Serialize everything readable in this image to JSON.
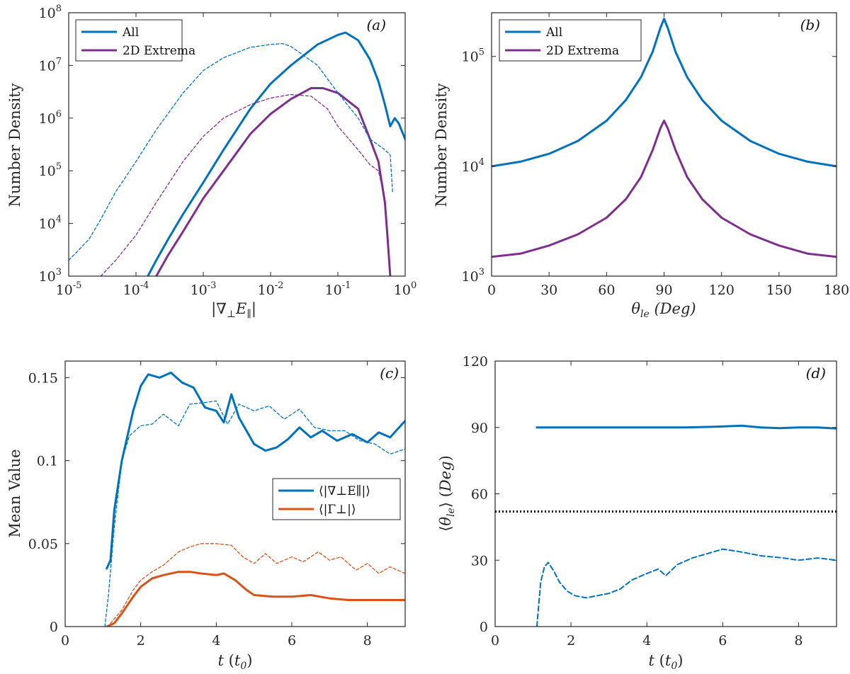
{
  "colors": {
    "blue": "#0072bd",
    "purple": "#7e2f8e",
    "orange": "#d95319",
    "black": "#000000"
  },
  "chart_data": [
    {
      "panel": "(a)",
      "type": "line",
      "xscale": "log",
      "yscale": "log",
      "xlim": [
        1e-05,
        1
      ],
      "ylim": [
        1000,
        100000000
      ],
      "xticks": [
        "10-5",
        "10-4",
        "10-3",
        "10-2",
        "10-1",
        "100"
      ],
      "yticks": [
        "103",
        "104",
        "105",
        "106",
        "107",
        "108"
      ],
      "xlabel": "|∇⊥E∥|",
      "ylabel": "Number Density",
      "legend": [
        "All",
        "2D Extrema"
      ],
      "legend_position": "top-left",
      "series": [
        {
          "name": "All (solid)",
          "color": "blue",
          "style": "solid",
          "x": [
            0.00015,
            0.0002,
            0.0003,
            0.0005,
            0.001,
            0.002,
            0.005,
            0.01,
            0.02,
            0.05,
            0.1,
            0.13,
            0.2,
            0.3,
            0.4,
            0.5,
            0.6,
            0.7,
            0.8,
            1.0
          ],
          "y": [
            1000,
            2000,
            5000,
            15000,
            60000,
            250000,
            1500000,
            4500000,
            10000000,
            25000000,
            38000000,
            42000000,
            30000000,
            13000000,
            5000000,
            1800000,
            700000,
            1000000,
            800000,
            400000
          ]
        },
        {
          "name": "2D Extrema (solid)",
          "color": "purple",
          "style": "solid",
          "x": [
            0.0002,
            0.0003,
            0.0005,
            0.001,
            0.002,
            0.005,
            0.01,
            0.02,
            0.04,
            0.06,
            0.1,
            0.2,
            0.3,
            0.4,
            0.5,
            0.55,
            0.6
          ],
          "y": [
            1000,
            2500,
            7000,
            30000,
            100000,
            500000,
            1200000,
            2300000,
            3700000,
            3700000,
            3000000,
            1500000,
            400000,
            150000,
            25000,
            5000,
            1000
          ]
        },
        {
          "name": "All (dashed)",
          "color": "blue",
          "style": "dashed",
          "x": [
            1e-05,
            2e-05,
            3e-05,
            5e-05,
            0.0001,
            0.0002,
            0.0005,
            0.001,
            0.002,
            0.005,
            0.01,
            0.015,
            0.02,
            0.05,
            0.1,
            0.2,
            0.3,
            0.5,
            0.6,
            0.65
          ],
          "y": [
            2000,
            5000,
            12000,
            40000,
            150000,
            600000,
            3000000,
            8000000,
            14000000,
            22000000,
            25000000,
            26000000,
            23000000,
            10000000,
            3000000,
            1000000,
            400000,
            250000,
            200000,
            40000
          ]
        },
        {
          "name": "2D Extrema (dashed)",
          "color": "purple",
          "style": "dashed",
          "x": [
            3e-05,
            5e-05,
            0.0001,
            0.0002,
            0.0005,
            0.001,
            0.002,
            0.005,
            0.01,
            0.02,
            0.04,
            0.07,
            0.1,
            0.2,
            0.3,
            0.4,
            0.5
          ],
          "y": [
            1000,
            2000,
            6000,
            25000,
            150000,
            450000,
            1000000,
            1800000,
            2400000,
            2800000,
            2600000,
            1500000,
            700000,
            250000,
            130000,
            100000,
            30000
          ]
        }
      ]
    },
    {
      "panel": "(b)",
      "type": "line",
      "yscale": "log",
      "xlim": [
        0,
        180
      ],
      "ylim": [
        1000,
        250000
      ],
      "xticks": [
        "0",
        "30",
        "60",
        "90",
        "120",
        "150",
        "180"
      ],
      "yticks": [
        "103",
        "104",
        "105"
      ],
      "xlabel": "θle (Deg)",
      "ylabel": "Number Density",
      "legend": [
        "All",
        "2D Extrema"
      ],
      "legend_position": "top-left",
      "series": [
        {
          "name": "All",
          "color": "blue",
          "style": "solid",
          "x": [
            0,
            15,
            30,
            45,
            60,
            70,
            78,
            84,
            88,
            90,
            92,
            96,
            102,
            110,
            120,
            135,
            150,
            165,
            180
          ],
          "y": [
            10000,
            11000,
            13000,
            17000,
            26000,
            40000,
            65000,
            110000,
            180000,
            220000,
            180000,
            110000,
            65000,
            40000,
            26000,
            17000,
            13000,
            11000,
            10000
          ]
        },
        {
          "name": "2D Extrema",
          "color": "purple",
          "style": "solid",
          "x": [
            0,
            15,
            30,
            45,
            60,
            70,
            78,
            84,
            88,
            90,
            92,
            96,
            102,
            110,
            120,
            135,
            150,
            165,
            180
          ],
          "y": [
            1500,
            1600,
            1900,
            2400,
            3400,
            5000,
            8000,
            14000,
            22000,
            26000,
            22000,
            14000,
            8000,
            5000,
            3400,
            2400,
            1900,
            1600,
            1500
          ]
        }
      ]
    },
    {
      "panel": "(c)",
      "type": "line",
      "xlim": [
        0,
        9
      ],
      "ylim": [
        0,
        0.16
      ],
      "xticks": [
        "0",
        "2",
        "4",
        "6",
        "8"
      ],
      "yticks": [
        "0",
        "0.05",
        "0.1",
        "0.15"
      ],
      "xlabel": "t (t0)",
      "ylabel": "Mean Value",
      "legend": [
        "⟨|∇⊥E∥|⟩",
        "⟨|Γ⊥|⟩"
      ],
      "legend_position": "center-right",
      "series": [
        {
          "name": "⟨|∇⊥E∥|⟩ solid",
          "color": "blue",
          "style": "solid",
          "x": [
            1.1,
            1.2,
            1.3,
            1.5,
            1.8,
            2.0,
            2.2,
            2.5,
            2.8,
            3.1,
            3.4,
            3.7,
            4.0,
            4.2,
            4.4,
            4.6,
            5.0,
            5.3,
            5.6,
            5.9,
            6.2,
            6.5,
            6.8,
            7.2,
            7.6,
            8.0,
            8.3,
            8.6,
            9.0
          ],
          "y": [
            0.035,
            0.04,
            0.07,
            0.1,
            0.13,
            0.145,
            0.152,
            0.15,
            0.153,
            0.147,
            0.144,
            0.132,
            0.13,
            0.123,
            0.14,
            0.126,
            0.11,
            0.106,
            0.108,
            0.113,
            0.12,
            0.114,
            0.118,
            0.112,
            0.116,
            0.111,
            0.117,
            0.114,
            0.124
          ]
        },
        {
          "name": "⟨|∇⊥E∥|⟩ dashed",
          "color": "blue",
          "style": "dashed",
          "x": [
            1.05,
            1.15,
            1.3,
            1.5,
            1.7,
            2.0,
            2.3,
            2.6,
            3.0,
            3.3,
            3.7,
            4.0,
            4.3,
            4.6,
            5.0,
            5.4,
            5.8,
            6.2,
            6.6,
            7.0,
            7.4,
            7.8,
            8.2,
            8.6,
            9.0
          ],
          "y": [
            0.0,
            0.02,
            0.06,
            0.1,
            0.115,
            0.121,
            0.122,
            0.128,
            0.121,
            0.134,
            0.135,
            0.136,
            0.122,
            0.134,
            0.13,
            0.133,
            0.125,
            0.131,
            0.12,
            0.118,
            0.118,
            0.112,
            0.11,
            0.104,
            0.107
          ]
        },
        {
          "name": "⟨|Γ⊥|⟩ solid",
          "color": "orange",
          "style": "solid",
          "x": [
            1.1,
            1.3,
            1.5,
            1.8,
            2.0,
            2.3,
            2.6,
            3.0,
            3.3,
            3.6,
            4.0,
            4.2,
            4.5,
            4.8,
            5.0,
            5.5,
            6.0,
            6.5,
            7.0,
            7.5,
            8.0,
            8.5,
            9.0
          ],
          "y": [
            0.0,
            0.002,
            0.008,
            0.018,
            0.024,
            0.029,
            0.031,
            0.033,
            0.033,
            0.032,
            0.031,
            0.032,
            0.028,
            0.022,
            0.019,
            0.018,
            0.018,
            0.019,
            0.017,
            0.016,
            0.016,
            0.016,
            0.016
          ]
        },
        {
          "name": "⟨|Γ⊥|⟩ dashed",
          "color": "orange",
          "style": "dashed",
          "x": [
            1.2,
            1.5,
            1.8,
            2.0,
            2.3,
            2.6,
            3.0,
            3.3,
            3.6,
            4.0,
            4.4,
            4.7,
            5.0,
            5.3,
            5.6,
            6.0,
            6.3,
            6.7,
            7.0,
            7.3,
            7.7,
            8.0,
            8.3,
            8.6,
            9.0
          ],
          "y": [
            0.002,
            0.01,
            0.022,
            0.028,
            0.033,
            0.037,
            0.045,
            0.048,
            0.05,
            0.05,
            0.049,
            0.042,
            0.038,
            0.044,
            0.038,
            0.042,
            0.039,
            0.045,
            0.04,
            0.042,
            0.034,
            0.038,
            0.032,
            0.036,
            0.032
          ]
        }
      ]
    },
    {
      "panel": "(d)",
      "type": "line",
      "xlim": [
        0,
        9
      ],
      "ylim": [
        0,
        120
      ],
      "xticks": [
        "0",
        "2",
        "4",
        "6",
        "8"
      ],
      "yticks": [
        "0",
        "30",
        "60",
        "90",
        "120"
      ],
      "xlabel": "t (t0)",
      "ylabel": "⟨θle⟩ (Deg)",
      "series": [
        {
          "name": "solid",
          "color": "blue",
          "style": "solid",
          "x": [
            1.1,
            2.0,
            3.0,
            4.0,
            5.0,
            5.8,
            6.5,
            7.0,
            7.5,
            8.0,
            8.5,
            9.0
          ],
          "y": [
            90,
            90,
            90,
            90,
            90,
            90.3,
            90.8,
            90,
            89.7,
            90,
            90,
            89.5
          ]
        },
        {
          "name": "dashed",
          "color": "blue",
          "style": "dashed",
          "x": [
            1.1,
            1.2,
            1.3,
            1.4,
            1.55,
            1.7,
            1.9,
            2.1,
            2.4,
            2.7,
            3.0,
            3.3,
            3.6,
            4.0,
            4.3,
            4.5,
            4.8,
            5.2,
            5.6,
            6.0,
            6.4,
            7.0,
            7.6,
            8.0,
            8.5,
            9.0
          ],
          "y": [
            0,
            20,
            27,
            29,
            25,
            20,
            16,
            14,
            13,
            14,
            15,
            17,
            21,
            24,
            26,
            23,
            28,
            31,
            33,
            35,
            34,
            32,
            31,
            30,
            31,
            30
          ]
        },
        {
          "name": "dotted",
          "color": "black",
          "style": "dotted",
          "x": [
            0,
            9
          ],
          "y": [
            52,
            52
          ]
        }
      ]
    }
  ]
}
